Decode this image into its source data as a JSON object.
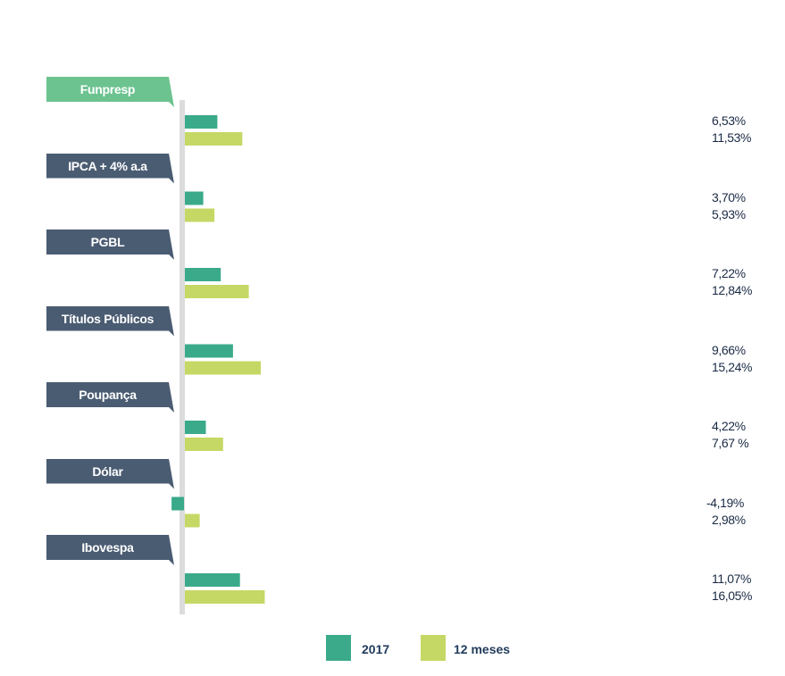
{
  "chart_data": {
    "type": "bar",
    "orientation": "horizontal",
    "categories": [
      "Funpresp",
      "IPCA + 4% a.a",
      "PGBL",
      "Títulos Públicos",
      "Poupança",
      "Dólar",
      "Ibovespa"
    ],
    "series": [
      {
        "name": "2017",
        "values": [
          6.53,
          3.7,
          7.22,
          9.66,
          4.22,
          -4.19,
          11.07
        ],
        "color": "#3aaa8a"
      },
      {
        "name": "12 meses",
        "values": [
          11.53,
          5.93,
          12.84,
          15.24,
          7.67,
          2.98,
          16.05
        ],
        "color": "#c5d865"
      }
    ],
    "value_labels": [
      [
        "6,53%",
        "11,53%"
      ],
      [
        "3,70%",
        "5,93%"
      ],
      [
        "7,22%",
        "12,84%"
      ],
      [
        "9,66%",
        "15,24%"
      ],
      [
        "4,22%",
        "7,67 %"
      ],
      [
        "-4,19%",
        "2,98%"
      ],
      [
        "11,07%",
        "16,05%"
      ]
    ],
    "category_label_colors": {
      "highlight": "#6cc38f",
      "default": "#4a5c72"
    },
    "axis_color": "#dcdcdc",
    "value_label_color": "#1a2a44",
    "legend_position": "bottom-center",
    "grid": false
  }
}
